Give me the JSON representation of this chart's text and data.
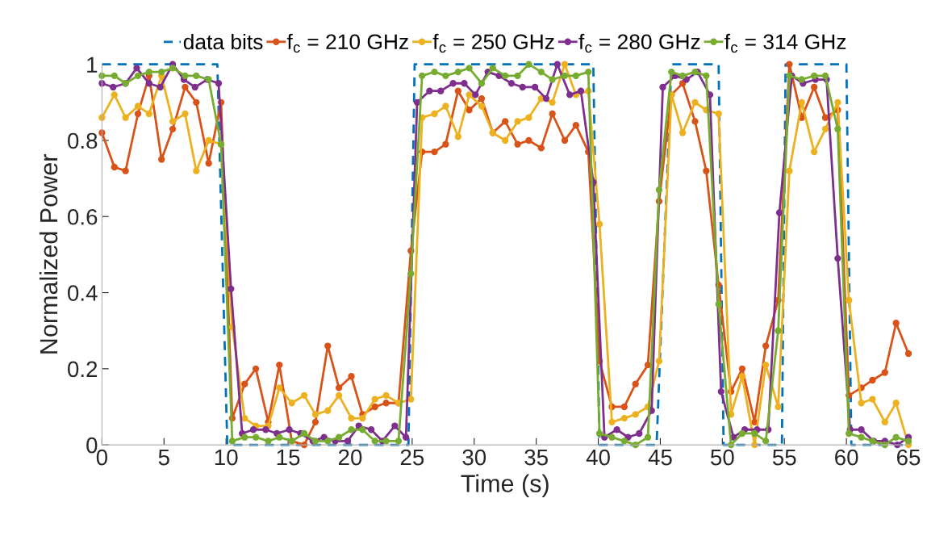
{
  "chart_data": {
    "type": "line",
    "xlabel": "Time (s)",
    "ylabel": "Normalized Power",
    "xlim": [
      0,
      65
    ],
    "xticks": [
      0,
      5,
      10,
      15,
      20,
      25,
      30,
      35,
      40,
      45,
      50,
      55,
      60,
      65
    ],
    "ylim": [
      0,
      1
    ],
    "yticks": [
      0,
      0.2,
      0.4,
      0.6,
      0.8,
      1
    ],
    "x": [
      0,
      1,
      1.9,
      2.9,
      3.8,
      4.8,
      5.7,
      6.7,
      7.6,
      8.6,
      9.6,
      10.5,
      11.5,
      12.4,
      13.4,
      14.3,
      15.3,
      16.3,
      17.2,
      18.2,
      19.1,
      20.1,
      21,
      22,
      22.9,
      23.9,
      24.9,
      25.8,
      26.8,
      27.7,
      28.7,
      29.6,
      30.6,
      31.5,
      32.5,
      33.5,
      34.4,
      35.4,
      36.3,
      37.3,
      38.2,
      39.2,
      40.1,
      41.1,
      42.1,
      43,
      44,
      44.9,
      45.9,
      46.8,
      47.8,
      48.7,
      49.7,
      50.7,
      51.6,
      52.6,
      53.5,
      54.5,
      55.4,
      56.4,
      57.4,
      58.3,
      59.3,
      60.2,
      61.2,
      62.1,
      63.1,
      64,
      65
    ],
    "legend": "top",
    "grid": false,
    "marker": "circle",
    "line_style": "solid",
    "series": [
      {
        "name": "data bits",
        "color": "#0072bd",
        "marker": "none",
        "line_style": "dashed",
        "x": [
          0,
          9.3,
          10.1,
          24.7,
          25.2,
          39.6,
          40.1,
          44.7,
          45.9,
          49.7,
          50.1,
          54.8,
          55.1,
          60,
          60.4,
          65
        ],
        "values": [
          1,
          1,
          0,
          0,
          1,
          1,
          0,
          0,
          1,
          1,
          0,
          0,
          1,
          1,
          0,
          0
        ]
      },
      {
        "name": "f$_{c}$ = 210 GHz",
        "color": "#d95319",
        "values": [
          0.82,
          0.73,
          0.72,
          0.87,
          0.97,
          0.75,
          0.83,
          0.94,
          0.9,
          0.74,
          0.9,
          0.07,
          0.16,
          0.2,
          0.06,
          0.21,
          0.01,
          0.0,
          0.06,
          0.26,
          0.15,
          0.18,
          0.08,
          0.1,
          0.11,
          0.11,
          0.51,
          0.77,
          0.77,
          0.79,
          0.93,
          0.88,
          0.91,
          0.82,
          0.85,
          0.79,
          0.8,
          0.78,
          0.87,
          0.8,
          0.84,
          0.77,
          0.22,
          0.1,
          0.1,
          0.16,
          0.21,
          0.64,
          0.92,
          0.95,
          0.85,
          0.72,
          0.42,
          0.14,
          0.2,
          0.06,
          0.26,
          0.38,
          1.0,
          0.86,
          0.94,
          0.86,
          0.88,
          0.13,
          0.15,
          0.17,
          0.19,
          0.32,
          0.24
        ]
      },
      {
        "name": "f$_{c}$ = 250 GHz",
        "color": "#edb120",
        "values": [
          0.86,
          0.92,
          0.86,
          0.89,
          0.87,
          0.97,
          0.85,
          0.87,
          0.72,
          0.8,
          0.79,
          0.31,
          0.07,
          0.05,
          0.05,
          0.15,
          0.11,
          0.13,
          0.08,
          0.09,
          0.13,
          0.07,
          0.07,
          0.12,
          0.13,
          0.11,
          0.12,
          0.86,
          0.87,
          0.89,
          0.81,
          0.92,
          0.89,
          0.82,
          0.8,
          0.85,
          0.86,
          0.91,
          0.9,
          1.0,
          0.92,
          0.93,
          0.58,
          0.06,
          0.07,
          0.08,
          0.1,
          0.22,
          0.92,
          0.82,
          0.9,
          0.88,
          0.87,
          0.08,
          0.18,
          0.0,
          0.21,
          0.1,
          0.72,
          0.9,
          0.77,
          0.83,
          0.9,
          0.38,
          0.11,
          0.12,
          0.06,
          0.11,
          0.0
        ]
      },
      {
        "name": "f$_{c}$ = 280 GHz",
        "color": "#7e2f8e",
        "x": [
          0,
          0.9,
          1.9,
          2.8,
          3.8,
          4.7,
          5.7,
          6.6,
          7.5,
          8.5,
          9.4,
          10.4,
          11.3,
          12.2,
          13.2,
          14.1,
          15.1,
          16,
          17,
          17.9,
          18.8,
          19.8,
          20.7,
          21.7,
          22.6,
          23.6,
          24.5,
          25.4,
          26.4,
          27.3,
          28.3,
          29.2,
          30.1,
          31.1,
          32,
          33,
          33.9,
          34.9,
          35.8,
          36.7,
          37.7,
          38.6,
          39.6,
          40.5,
          41.5,
          42.4,
          43.3,
          44.3,
          45.2,
          46.2,
          47.1,
          48,
          49,
          49.9,
          50.9,
          51.8,
          52.8,
          53.7,
          54.6,
          55.6,
          56.5,
          57.5,
          58.4,
          59.3,
          60.3,
          61.2,
          62.2,
          63.1,
          64.1,
          65
        ],
        "values": [
          0.95,
          0.94,
          0.95,
          0.99,
          0.95,
          0.94,
          1.0,
          0.96,
          0.94,
          0.96,
          0.95,
          0.41,
          0.03,
          0.04,
          0.04,
          0.03,
          0.04,
          0.03,
          0.01,
          0.02,
          0.01,
          0.01,
          0.05,
          0.04,
          0.01,
          0.05,
          0.02,
          0.9,
          0.93,
          0.93,
          0.95,
          0.95,
          0.92,
          0.98,
          0.97,
          0.95,
          0.94,
          0.94,
          0.91,
          1.0,
          0.92,
          0.93,
          0.69,
          0.02,
          0.04,
          0.02,
          0.03,
          0.09,
          0.94,
          0.97,
          0.96,
          0.98,
          0.92,
          0.14,
          0.02,
          0.04,
          0.04,
          0.04,
          0.61,
          0.97,
          0.95,
          0.96,
          0.96,
          0.49,
          0.04,
          0.04,
          0.01,
          0.01,
          0.0,
          0.02
        ]
      },
      {
        "name": "f$_{c}$ = 314 GHz",
        "color": "#77ac30",
        "values": [
          0.97,
          0.97,
          0.95,
          0.97,
          0.98,
          0.98,
          0.99,
          0.97,
          0.97,
          0.96,
          0.79,
          0.01,
          0.02,
          0.02,
          0.01,
          0.02,
          0.01,
          0.03,
          0.01,
          0.01,
          0.02,
          0.04,
          0.04,
          0.01,
          0.01,
          0.01,
          0.45,
          0.97,
          0.98,
          0.97,
          0.98,
          0.99,
          0.95,
          0.99,
          0.97,
          0.97,
          1.0,
          0.98,
          0.96,
          0.97,
          0.97,
          0.98,
          0.03,
          0.02,
          0.01,
          0.0,
          0.02,
          0.67,
          0.98,
          0.97,
          0.98,
          0.97,
          0.37,
          0.0,
          0.03,
          0.03,
          0.01,
          0.3,
          0.97,
          0.96,
          0.97,
          0.97,
          0.83,
          0.03,
          0.02,
          0.01,
          0.0,
          0.02,
          0.01
        ]
      }
    ]
  }
}
